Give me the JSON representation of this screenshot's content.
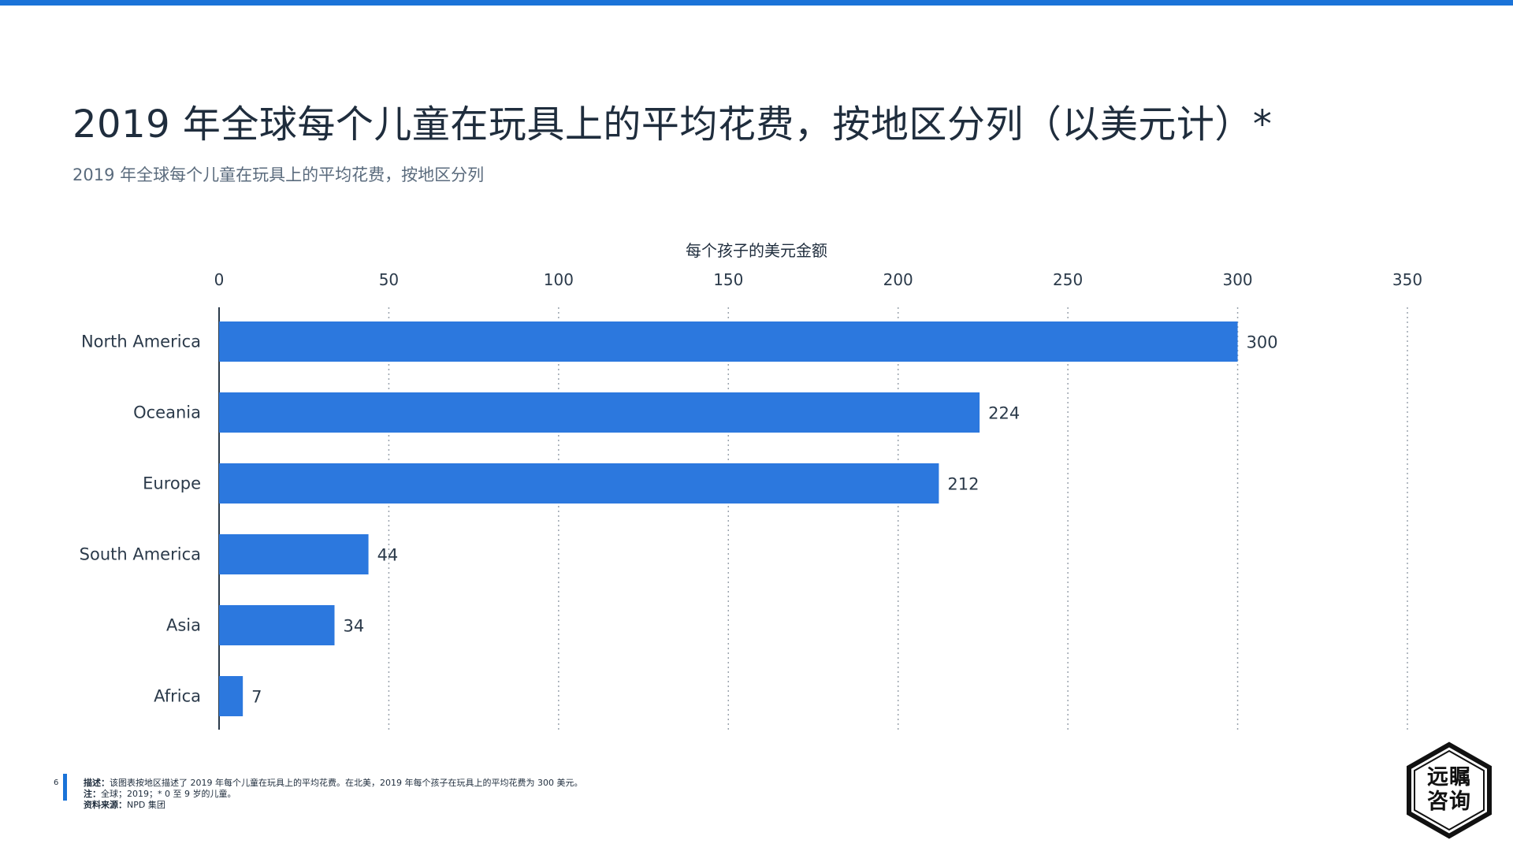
{
  "page": {
    "title": "2019 年全球每个儿童在玩具上的平均花费，按地区分列（以美元计）*",
    "subtitle": "2019 年全球每个儿童在玩具上的平均花费，按地区分列",
    "page_number": "6",
    "accent_color": "#1a73d8"
  },
  "footer": {
    "description_label": "描述：",
    "description": "该图表按地区描述了 2019 年每个儿童在玩具上的平均花费。在北美，2019 年每个孩子在玩具上的平均花费为 300 美元。",
    "note_label": "注：",
    "note": "全球；2019；* 0 至 9 岁的儿童。",
    "source_label": "资料来源：",
    "source": "NPD 集团"
  },
  "logo": {
    "line1": "远瞩",
    "line2": "咨询"
  },
  "chart_data": {
    "type": "bar",
    "orientation": "horizontal",
    "categories": [
      "North America",
      "Oceania",
      "Europe",
      "South America",
      "Asia",
      "Africa"
    ],
    "values": [
      300,
      224,
      212,
      44,
      34,
      7
    ],
    "xlabel": "每个孩子的美元金额",
    "ylabel": "",
    "xlim": [
      0,
      350
    ],
    "ticks": [
      0,
      50,
      100,
      150,
      200,
      250,
      300,
      350
    ],
    "bar_color": "#2c78de",
    "grid": "vertical dotted",
    "axis_position": "top"
  }
}
